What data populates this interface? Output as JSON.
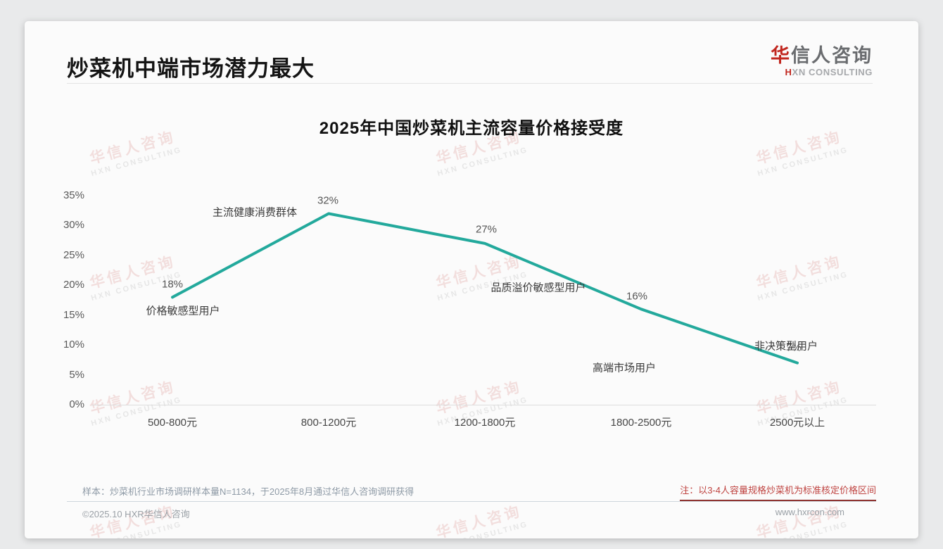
{
  "page": {
    "title": "炒菜机中端市场潜力最大",
    "logo": {
      "brand_red": "华",
      "brand_gray": "信人咨询",
      "sub_red": "H",
      "sub_gray": "XN CONSULTING"
    },
    "notes": {
      "sample": "样本：炒菜机行业市场调研样本量N=1134，于2025年8月通过华信人咨询调研获得",
      "price_note": "注：以3-4人容量规格炒菜机为标准核定价格区间"
    },
    "footer": {
      "copyright": "©2025.10 HXR华信人咨询",
      "website": "www.hxrcon.com"
    }
  },
  "watermark": {
    "line1": "华信人咨询",
    "line2": "HXN CONSULTING"
  },
  "chart_data": {
    "type": "line",
    "title": "2025年中国炒菜机主流容量价格接受度",
    "categories": [
      "500-800元",
      "800-1200元",
      "1200-1800元",
      "1800-2500元",
      "2500元以上"
    ],
    "values": [
      18,
      32,
      27,
      16,
      7
    ],
    "value_labels": [
      "18%",
      "32%",
      "27%",
      "16%",
      "7%"
    ],
    "point_annotations": [
      "价格敏感型用户",
      "主流健康消费群体",
      "品质溢价敏感型用户",
      "高端市场用户",
      "非决策型用户"
    ],
    "y_ticks": [
      "35%",
      "30%",
      "25%",
      "20%",
      "15%",
      "10%",
      "5%",
      "0%"
    ],
    "xlabel": "",
    "ylabel": "",
    "ylim": [
      0,
      35
    ],
    "grid": "baseline-only",
    "legend": "none",
    "line_color": "#23a99c"
  }
}
